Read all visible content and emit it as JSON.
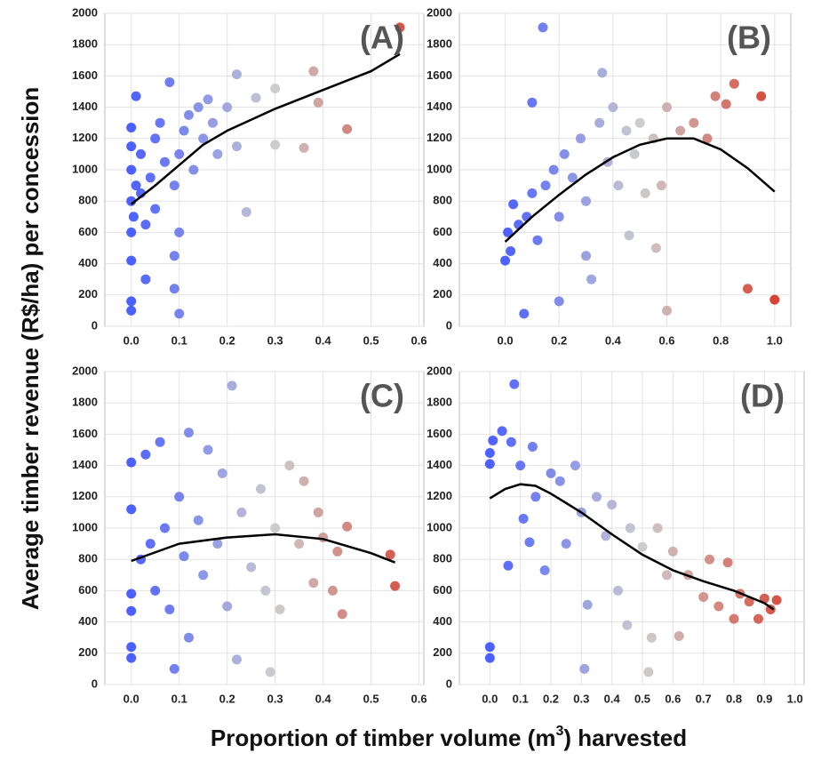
{
  "ylabel": "Average timber revenue (R$/ha) per concession",
  "xlabel": [
    "Proportion of timber volume (m",
    "3",
    ") harvested"
  ],
  "chart_data": [
    {
      "type": "scatter",
      "title": "(A)",
      "grid": true,
      "color_scale": [
        "#3a50ff",
        "#c8c8c8",
        "#d32f1e"
      ],
      "line_color": "#000000",
      "xlim": [
        -0.055,
        0.61
      ],
      "xticks": [
        {
          "value": 0,
          "label": "0.0"
        },
        0.1,
        0.2,
        0.3,
        0.4,
        0.5,
        0.6
      ],
      "ylim": [
        0,
        2000
      ],
      "yticks": [
        0,
        200,
        400,
        600,
        800,
        1000,
        1200,
        1400,
        1600,
        1800,
        2000
      ],
      "x": [
        0,
        0,
        0,
        0,
        0,
        0,
        0,
        0,
        0.005,
        0.01,
        0.01,
        0.02,
        0.02,
        0.03,
        0.03,
        0.04,
        0.05,
        0.05,
        0.06,
        0.07,
        0.08,
        0.09,
        0.09,
        0.1,
        0.1,
        0.1,
        0.11,
        0.12,
        0.13,
        0.14,
        0.15,
        0.16,
        0.17,
        0.18,
        0.2,
        0.22,
        0.22,
        0.26,
        0.3,
        0.3,
        0.36,
        0.38,
        0.39,
        0.45,
        0.56,
        0.24,
        0.09
      ],
      "values": [
        100,
        160,
        420,
        600,
        800,
        1000,
        1150,
        1270,
        700,
        1470,
        900,
        1100,
        850,
        650,
        300,
        950,
        1200,
        750,
        1300,
        1050,
        1560,
        900,
        240,
        1100,
        600,
        80,
        1250,
        1350,
        1000,
        1400,
        1200,
        1450,
        1300,
        1100,
        1400,
        1150,
        1610,
        1460,
        1520,
        1160,
        1140,
        1630,
        1430,
        1260,
        1910,
        730,
        450
      ],
      "trend_x": [
        0,
        0.05,
        0.1,
        0.15,
        0.2,
        0.3,
        0.4,
        0.5,
        0.56
      ],
      "trend_values": [
        780,
        900,
        1030,
        1160,
        1250,
        1390,
        1510,
        1630,
        1740
      ]
    },
    {
      "type": "scatter",
      "title": "(B)",
      "grid": true,
      "color_scale": [
        "#3a50ff",
        "#c8c8c8",
        "#d32f1e"
      ],
      "line_color": "#000000",
      "xlim": [
        -0.17,
        1.06
      ],
      "xticks": [
        {
          "value": 0,
          "label": "0.0"
        },
        0.2,
        0.4,
        0.6,
        0.8,
        {
          "value": 1,
          "label": "1.0"
        }
      ],
      "ylim": [
        0,
        2000
      ],
      "yticks": [
        0,
        200,
        400,
        600,
        800,
        1000,
        1200,
        1400,
        1600,
        1800,
        2000
      ],
      "x": [
        0,
        0.01,
        0.02,
        0.03,
        0.05,
        0.07,
        0.08,
        0.1,
        0.1,
        0.12,
        0.14,
        0.15,
        0.18,
        0.2,
        0.2,
        0.22,
        0.25,
        0.28,
        0.3,
        0.3,
        0.32,
        0.35,
        0.36,
        0.38,
        0.4,
        0.42,
        0.45,
        0.48,
        0.5,
        0.52,
        0.55,
        0.56,
        0.58,
        0.6,
        0.6,
        0.65,
        0.7,
        0.75,
        0.78,
        0.82,
        0.85,
        0.9,
        0.95,
        1.0,
        0.46
      ],
      "values": [
        420,
        600,
        480,
        780,
        650,
        80,
        700,
        850,
        1430,
        550,
        1910,
        900,
        1000,
        700,
        160,
        1100,
        950,
        1200,
        800,
        450,
        300,
        1300,
        1620,
        1050,
        1400,
        900,
        1250,
        1100,
        1300,
        850,
        1200,
        500,
        900,
        1400,
        100,
        1250,
        1300,
        1200,
        1470,
        1420,
        1550,
        240,
        1470,
        170,
        580
      ],
      "trend_x": [
        0,
        0.1,
        0.2,
        0.3,
        0.4,
        0.5,
        0.6,
        0.7,
        0.8,
        0.9,
        1.0
      ],
      "trend_values": [
        540,
        700,
        840,
        970,
        1080,
        1160,
        1200,
        1200,
        1130,
        1010,
        860
      ]
    },
    {
      "type": "scatter",
      "title": "(C)",
      "grid": true,
      "color_scale": [
        "#3a50ff",
        "#c8c8c8",
        "#d32f1e"
      ],
      "line_color": "#000000",
      "xlim": [
        -0.055,
        0.61
      ],
      "xticks": [
        {
          "value": 0,
          "label": "0.0"
        },
        0.1,
        0.2,
        0.3,
        0.4,
        0.5,
        0.6
      ],
      "ylim": [
        0,
        2000
      ],
      "yticks": [
        0,
        200,
        400,
        600,
        800,
        1000,
        1200,
        1400,
        1600,
        1800,
        2000
      ],
      "x": [
        0,
        0,
        0,
        0,
        0,
        0,
        0.02,
        0.03,
        0.04,
        0.05,
        0.06,
        0.07,
        0.08,
        0.09,
        0.1,
        0.11,
        0.12,
        0.12,
        0.14,
        0.15,
        0.16,
        0.18,
        0.19,
        0.2,
        0.21,
        0.22,
        0.23,
        0.25,
        0.27,
        0.28,
        0.29,
        0.3,
        0.31,
        0.33,
        0.35,
        0.36,
        0.38,
        0.39,
        0.4,
        0.42,
        0.43,
        0.44,
        0.45,
        0.54,
        0.55
      ],
      "values": [
        170,
        240,
        470,
        580,
        1120,
        1420,
        800,
        1470,
        900,
        600,
        1550,
        1000,
        480,
        100,
        1200,
        820,
        1610,
        300,
        1050,
        700,
        1500,
        900,
        1350,
        500,
        1910,
        160,
        1100,
        750,
        1250,
        600,
        80,
        1000,
        480,
        1400,
        900,
        1300,
        650,
        1100,
        940,
        600,
        850,
        450,
        1010,
        830,
        630
      ],
      "trend_x": [
        0,
        0.1,
        0.2,
        0.3,
        0.4,
        0.5,
        0.55
      ],
      "trend_values": [
        790,
        900,
        940,
        960,
        930,
        840,
        780
      ]
    },
    {
      "type": "scatter",
      "title": "(D)",
      "grid": true,
      "color_scale": [
        "#3a50ff",
        "#c8c8c8",
        "#d32f1e"
      ],
      "line_color": "#000000",
      "xlim": [
        -0.1,
        1.03
      ],
      "xticks": [
        {
          "value": 0,
          "label": "0.0"
        },
        0.1,
        0.2,
        0.3,
        0.4,
        0.5,
        0.6,
        0.7,
        0.8,
        0.9,
        {
          "value": 1,
          "label": "1.0"
        }
      ],
      "ylim": [
        0,
        2000
      ],
      "yticks": [
        0,
        200,
        400,
        600,
        800,
        1000,
        1200,
        1400,
        1600,
        1800,
        2000
      ],
      "x": [
        0,
        0,
        0,
        0,
        0.01,
        0.04,
        0.06,
        0.07,
        0.08,
        0.1,
        0.11,
        0.13,
        0.14,
        0.15,
        0.18,
        0.2,
        0.23,
        0.25,
        0.28,
        0.3,
        0.31,
        0.32,
        0.35,
        0.38,
        0.4,
        0.42,
        0.45,
        0.46,
        0.5,
        0.52,
        0.53,
        0.55,
        0.58,
        0.6,
        0.62,
        0.65,
        0.7,
        0.72,
        0.75,
        0.78,
        0.8,
        0.82,
        0.85,
        0.88,
        0.9,
        0.92,
        0.94
      ],
      "values": [
        170,
        240,
        1410,
        1480,
        1560,
        1620,
        760,
        1550,
        1920,
        1400,
        1060,
        910,
        1520,
        1200,
        730,
        1350,
        1300,
        900,
        1400,
        1100,
        100,
        510,
        1200,
        950,
        1150,
        600,
        380,
        1000,
        880,
        80,
        300,
        1000,
        700,
        850,
        310,
        700,
        560,
        800,
        500,
        780,
        420,
        580,
        530,
        420,
        550,
        480,
        540
      ],
      "trend_x": [
        0,
        0.05,
        0.1,
        0.15,
        0.2,
        0.3,
        0.4,
        0.5,
        0.6,
        0.7,
        0.8,
        0.9,
        0.93
      ],
      "trend_values": [
        1190,
        1250,
        1280,
        1270,
        1220,
        1100,
        960,
        830,
        730,
        660,
        600,
        520,
        480
      ]
    }
  ]
}
